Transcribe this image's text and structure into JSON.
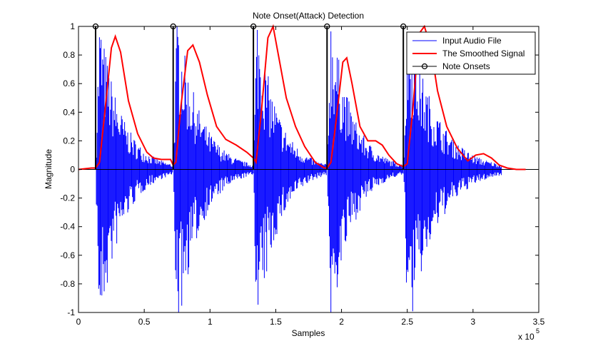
{
  "chart_data": {
    "type": "line",
    "title": "Note Onset(Attack) Detection",
    "xlabel": "Samples",
    "ylabel": "Magnitude",
    "x_exponent_label": "x 10",
    "x_exponent_power": "5",
    "xlim": [
      0,
      3.5
    ],
    "ylim": [
      -1,
      1
    ],
    "xticks": [
      0,
      0.5,
      1,
      1.5,
      2,
      2.5,
      3,
      3.5
    ],
    "xtick_labels": [
      "0",
      "0.5",
      "1",
      "1.5",
      "2",
      "2.5",
      "3",
      "3.5"
    ],
    "yticks": [
      1,
      0.8,
      0.6,
      0.4,
      0.2,
      0,
      -0.2,
      -0.4,
      -0.6,
      -0.8,
      -1
    ],
    "ytick_labels": [
      "1",
      "0.8",
      "0.6",
      "0.4",
      "0.2",
      "0",
      "-0.2",
      "-0.4",
      "-0.6",
      "-0.8",
      "-1"
    ],
    "grid": false,
    "legend_position": "top-right",
    "colors": {
      "audio": "#0000ff",
      "smoothed": "#ff0000",
      "onsets": "#000000"
    },
    "series": [
      {
        "name": "Input Audio File",
        "kind": "waveform-envelope",
        "notes": [
          {
            "start": 0.13,
            "peak_pos": 0.98,
            "peak_neg": -1.0,
            "end": 0.72
          },
          {
            "start": 0.72,
            "peak_pos": 1.0,
            "peak_neg": -1.0,
            "end": 1.33
          },
          {
            "start": 1.33,
            "peak_pos": 1.0,
            "peak_neg": -1.0,
            "end": 1.89
          },
          {
            "start": 1.89,
            "peak_pos": 1.0,
            "peak_neg": -0.95,
            "end": 2.47
          },
          {
            "start": 2.47,
            "peak_pos": 1.0,
            "peak_neg": -1.0,
            "end": 3.22
          }
        ]
      },
      {
        "name": "The Smoothed Signal",
        "x": [
          0,
          0.1,
          0.13,
          0.16,
          0.2,
          0.25,
          0.28,
          0.32,
          0.38,
          0.45,
          0.52,
          0.57,
          0.63,
          0.7,
          0.72,
          0.74,
          0.78,
          0.83,
          0.87,
          0.92,
          0.98,
          1.05,
          1.12,
          1.2,
          1.28,
          1.33,
          1.35,
          1.39,
          1.44,
          1.48,
          1.52,
          1.58,
          1.65,
          1.72,
          1.8,
          1.87,
          1.89,
          1.92,
          1.96,
          2.01,
          2.04,
          2.08,
          2.14,
          2.2,
          2.26,
          2.31,
          2.36,
          2.42,
          2.47,
          2.5,
          2.54,
          2.59,
          2.63,
          2.68,
          2.73,
          2.8,
          2.88,
          2.96,
          3.02,
          3.08,
          3.14,
          3.2,
          3.26,
          3.33,
          3.4
        ],
        "y": [
          0,
          0.01,
          0.01,
          0.05,
          0.4,
          0.85,
          0.93,
          0.82,
          0.48,
          0.25,
          0.12,
          0.08,
          0.07,
          0.07,
          0.03,
          0.05,
          0.45,
          0.83,
          0.87,
          0.75,
          0.52,
          0.3,
          0.21,
          0.17,
          0.12,
          0.08,
          0.05,
          0.4,
          0.92,
          1.0,
          0.8,
          0.5,
          0.3,
          0.16,
          0.05,
          0.01,
          0.01,
          0.05,
          0.35,
          0.75,
          0.78,
          0.6,
          0.3,
          0.2,
          0.2,
          0.17,
          0.1,
          0.04,
          0.02,
          0.04,
          0.4,
          0.95,
          1.0,
          0.85,
          0.55,
          0.3,
          0.15,
          0.06,
          0.1,
          0.11,
          0.08,
          0.03,
          0.01,
          0.0,
          0.0
        ]
      },
      {
        "name": "Note Onsets",
        "x": [
          0.13,
          0.72,
          1.33,
          1.89,
          2.47
        ],
        "y": [
          1,
          1,
          1,
          1,
          1
        ]
      }
    ]
  }
}
